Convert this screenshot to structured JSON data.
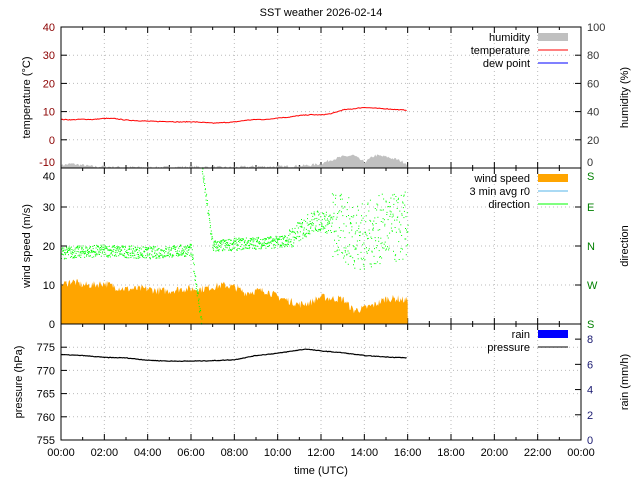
{
  "chart_data": [
    {
      "type": "line",
      "title": "SST weather 2026-02-14",
      "ylabel": "temperature (°C)",
      "y2label": "humidity (%)",
      "ylim": [
        -10,
        40
      ],
      "y2lim": [
        0,
        100
      ],
      "yticks": [
        "40",
        "30",
        "20",
        "10",
        "0",
        "-10"
      ],
      "y2ticks": [
        "100",
        "80",
        "60",
        "40",
        "20",
        "0"
      ],
      "legend": [
        "humidity",
        "temperature",
        "dew point"
      ],
      "colors": {
        "humidity": "#c0c0c0",
        "temperature": "#ff0000",
        "dew_point": "#0000ff",
        "left_axis": "#8b0000",
        "right_axis": "#333333"
      },
      "temperature": {
        "x": [
          0,
          0.5,
          1,
          1.5,
          2,
          2.5,
          3,
          3.5,
          4,
          4.5,
          5,
          5.5,
          6,
          6.5,
          7,
          7.5,
          8,
          8.5,
          9,
          9.5,
          10,
          10.5,
          11,
          11.5,
          12,
          12.5,
          13,
          13.5,
          14,
          14.5,
          15,
          15.5,
          16
        ],
        "y": [
          7.2,
          7.1,
          7.3,
          7.2,
          7.6,
          7.5,
          7.0,
          6.8,
          6.6,
          6.5,
          6.5,
          6.3,
          6.4,
          6.2,
          5.9,
          6.1,
          6.3,
          6.9,
          7.2,
          7.2,
          7.8,
          8.0,
          8.6,
          8.9,
          8.8,
          9.3,
          10.6,
          11.0,
          11.5,
          11.2,
          11.0,
          10.7,
          10.5
        ]
      },
      "humidity": {
        "x": [
          0,
          0.5,
          1,
          1.5,
          2,
          3,
          4,
          5,
          6,
          7,
          8,
          9,
          10,
          11,
          11.5,
          12,
          12.5,
          13,
          13.5,
          14,
          14.5,
          15,
          15.5,
          16
        ],
        "y": [
          2,
          3,
          2,
          1,
          1,
          0.5,
          0.5,
          0.5,
          1,
          0.5,
          0.5,
          1,
          1,
          1.5,
          2,
          3,
          6,
          8,
          9,
          4,
          9,
          8,
          6,
          3
        ]
      }
    },
    {
      "type": "area",
      "ylabel": "wind speed (m/s)",
      "y2label": "direction",
      "ylim": [
        0,
        40
      ],
      "yticks": [
        "40",
        "30",
        "20",
        "10",
        "0"
      ],
      "y2ticks": [
        "S",
        "E",
        "N",
        "W",
        "S"
      ],
      "legend": [
        "wind speed",
        "3 min avg r0",
        "direction"
      ],
      "colors": {
        "wind_speed": "#ffa500",
        "avg": "#56b4e9",
        "direction": "#00ff00",
        "right_axis": "#008000"
      },
      "wind_speed": {
        "x": [
          0,
          0.5,
          1,
          1.5,
          2,
          2.5,
          3,
          3.5,
          4,
          4.5,
          5,
          5.5,
          6,
          6.5,
          7,
          7.5,
          8,
          8.5,
          9,
          9.5,
          10,
          10.5,
          11,
          11.5,
          12,
          12.5,
          13,
          13.5,
          14,
          14.5,
          15,
          15.5,
          16
        ],
        "y": [
          10,
          11,
          10,
          10,
          10.5,
          9.5,
          9,
          9,
          9,
          8.5,
          8.5,
          9,
          9,
          9,
          9.5,
          10,
          9.5,
          8,
          8.5,
          8.5,
          7,
          6,
          5,
          5.5,
          7,
          6.5,
          6.5,
          3.5,
          4,
          5,
          6.5,
          6.5,
          6
        ]
      },
      "direction_deg": {
        "x": [
          0,
          1,
          2,
          3,
          4,
          5,
          6,
          7,
          8,
          9,
          10,
          10.5,
          11,
          11.5,
          12,
          12.5,
          13,
          13.5,
          14,
          14.5,
          15,
          15.5,
          16
        ],
        "y": [
          345,
          348,
          350,
          348,
          345,
          348,
          352,
          0,
          5,
          8,
          10,
          15,
          35,
          55,
          60,
          50,
          40,
          30,
          20,
          35,
          45,
          40,
          50
        ]
      }
    },
    {
      "type": "line",
      "ylabel": "pressure (hPa)",
      "y2label": "rain (mm/h)",
      "xlabel": "time (UTC)",
      "ylim": [
        755,
        780
      ],
      "y2lim": [
        0,
        9.2
      ],
      "yticks": [
        "775",
        "770",
        "765",
        "760",
        "755"
      ],
      "y2ticks": [
        "8",
        "6",
        "4",
        "2",
        "0"
      ],
      "xticks": [
        "00:00",
        "02:00",
        "04:00",
        "06:00",
        "08:00",
        "10:00",
        "12:00",
        "14:00",
        "16:00",
        "18:00",
        "20:00",
        "22:00",
        "00:00"
      ],
      "legend": [
        "rain",
        "pressure"
      ],
      "colors": {
        "rain": "#0000ff",
        "pressure": "#000000",
        "right_axis": "#191970"
      },
      "pressure": {
        "x": [
          0,
          1,
          2,
          3,
          4,
          5,
          6,
          7,
          8,
          9,
          10,
          11,
          11.3,
          12,
          13,
          14,
          15,
          16
        ],
        "y": [
          773.4,
          773.2,
          772.8,
          772.7,
          772.2,
          772.0,
          772.0,
          772.1,
          772.3,
          773.2,
          773.7,
          774.4,
          774.6,
          774.2,
          773.8,
          773.2,
          772.9,
          772.7
        ]
      }
    }
  ]
}
